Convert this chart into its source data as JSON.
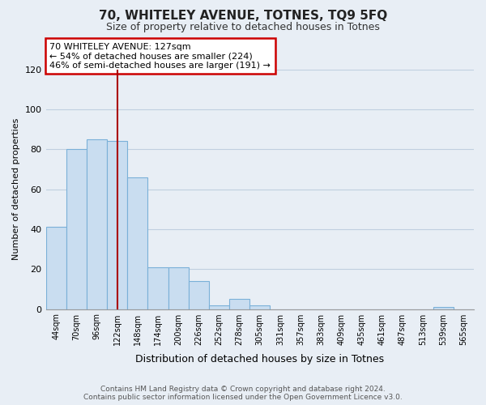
{
  "title": "70, WHITELEY AVENUE, TOTNES, TQ9 5FQ",
  "subtitle": "Size of property relative to detached houses in Totnes",
  "xlabel": "Distribution of detached houses by size in Totnes",
  "ylabel": "Number of detached properties",
  "bins": [
    "44sqm",
    "70sqm",
    "96sqm",
    "122sqm",
    "148sqm",
    "174sqm",
    "200sqm",
    "226sqm",
    "252sqm",
    "278sqm",
    "305sqm",
    "331sqm",
    "357sqm",
    "383sqm",
    "409sqm",
    "435sqm",
    "461sqm",
    "487sqm",
    "513sqm",
    "539sqm",
    "565sqm"
  ],
  "values": [
    41,
    80,
    85,
    84,
    66,
    21,
    21,
    14,
    2,
    5,
    2,
    0,
    0,
    0,
    0,
    0,
    0,
    0,
    0,
    1,
    0
  ],
  "bar_color": "#c9ddf0",
  "bar_edge_color": "#7ab0d8",
  "vline_x": 3.5,
  "vline_color": "#aa0000",
  "annotation_text": "70 WHITELEY AVENUE: 127sqm\n← 54% of detached houses are smaller (224)\n46% of semi-detached houses are larger (191) →",
  "annotation_box_edge_color": "#cc0000",
  "ylim": [
    0,
    120
  ],
  "yticks": [
    0,
    20,
    40,
    60,
    80,
    100,
    120
  ],
  "footer_text": "Contains HM Land Registry data © Crown copyright and database right 2024.\nContains public sector information licensed under the Open Government Licence v3.0.",
  "background_color": "#e8eef5",
  "plot_bg_color": "#e8eef5",
  "grid_color": "#c0cfe0"
}
